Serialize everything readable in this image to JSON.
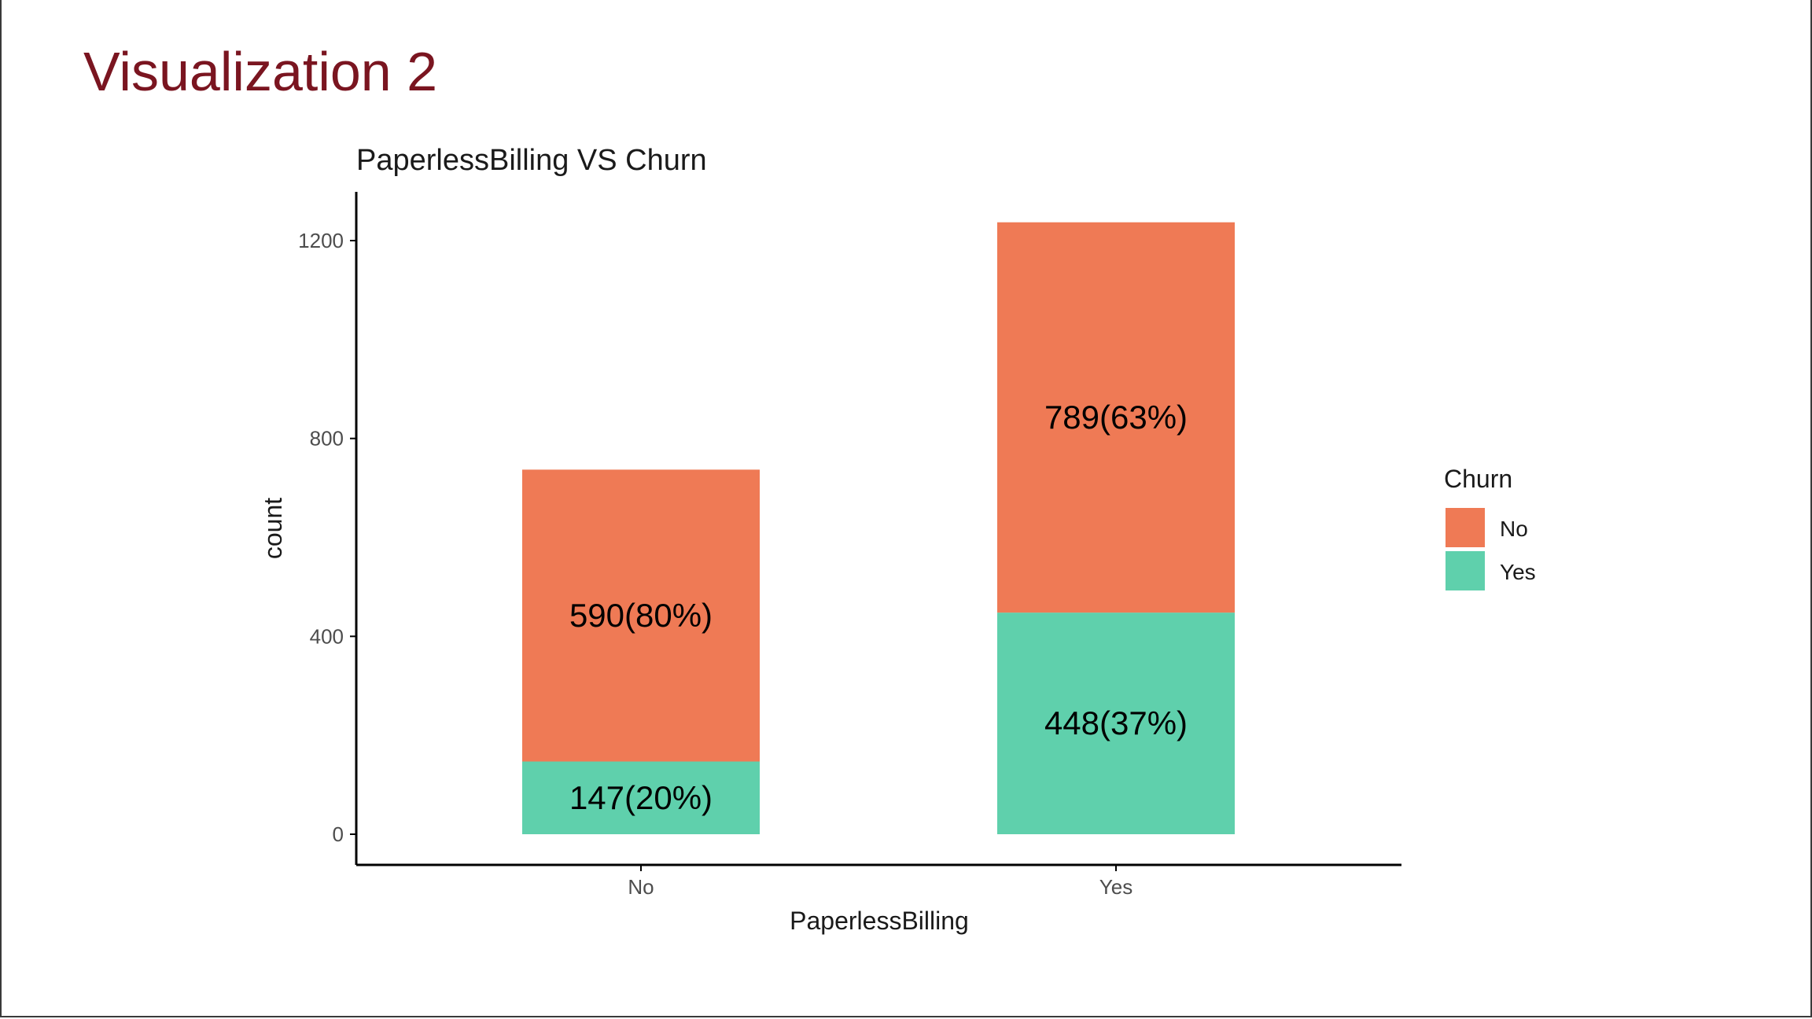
{
  "slide": {
    "title": "Visualization 2"
  },
  "colors": {
    "title": "#7a1520",
    "churn_no": "#ef7a55",
    "churn_yes": "#5fd0ac",
    "axis": "#000000",
    "tick_text": "#4d4d4d"
  },
  "chart_data": {
    "type": "bar",
    "stacked": true,
    "title": "PaperlessBilling VS Churn",
    "xlabel": "PaperlessBilling",
    "ylabel": "count",
    "categories": [
      "No",
      "Yes"
    ],
    "ylim": [
      0,
      1300
    ],
    "yticks": [
      0,
      400,
      800,
      1200
    ],
    "ytick_labels": [
      "0",
      "400",
      "800",
      "1200"
    ],
    "grid": false,
    "legend": {
      "title": "Churn",
      "position": "right"
    },
    "series": [
      {
        "name": "No",
        "values": [
          590,
          789
        ],
        "labels": [
          "590(80%)",
          "789(63%)"
        ]
      },
      {
        "name": "Yes",
        "values": [
          147,
          448
        ],
        "labels": [
          "147(20%)",
          "448(37%)"
        ]
      }
    ]
  }
}
